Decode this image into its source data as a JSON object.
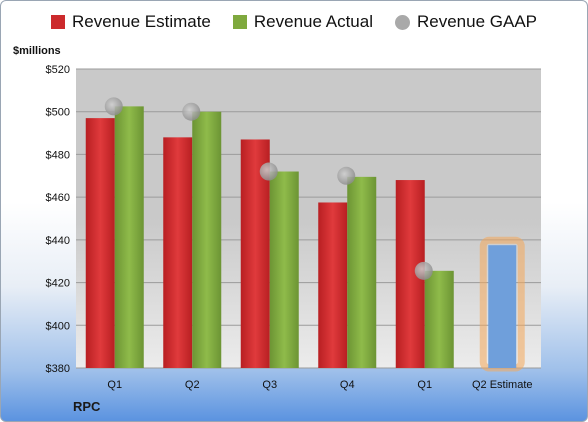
{
  "colors": {
    "estimate": "#cc2a2c",
    "actual": "#7fa93e",
    "gaap": "#a9a9a9",
    "projected": "#6f9fdb",
    "projected_glow": "#f4a85a",
    "plot_top": "#c9c9c9",
    "plot_bottom": "#ececec"
  },
  "legend": [
    {
      "label": "Revenue Estimate",
      "icon": "red-square",
      "color_key": "estimate"
    },
    {
      "label": "Revenue Actual",
      "icon": "green-square",
      "color_key": "actual"
    },
    {
      "label": "Revenue GAAP",
      "icon": "gray-circle",
      "color_key": "gaap"
    }
  ],
  "unit_label": "$millions",
  "company": "RPC",
  "chart_data": {
    "type": "bar",
    "title": "",
    "xlabel": "",
    "ylabel": "$millions",
    "ylim": [
      380,
      520
    ],
    "yticks": [
      380,
      400,
      420,
      440,
      460,
      480,
      500,
      520
    ],
    "ytick_labels": [
      "$380",
      "$400",
      "$420",
      "$440",
      "$460",
      "$480",
      "$500",
      "$520"
    ],
    "grid": true,
    "legend_position": "top",
    "categories": [
      "Q1",
      "Q2",
      "Q3",
      "Q4",
      "Q1",
      "Q2 Estimate"
    ],
    "series": [
      {
        "name": "Revenue Estimate",
        "kind": "bar",
        "values": [
          497,
          488,
          487,
          457.5,
          468,
          null
        ]
      },
      {
        "name": "Revenue Actual",
        "kind": "bar",
        "values": [
          502.5,
          500,
          472,
          469.5,
          425.5,
          null
        ]
      },
      {
        "name": "Revenue GAAP",
        "kind": "scatter",
        "values": [
          502.5,
          500,
          472,
          470,
          425.5,
          null
        ]
      },
      {
        "name": "Q2 Estimate",
        "kind": "bar",
        "values": [
          null,
          null,
          null,
          null,
          null,
          437.5
        ]
      }
    ]
  }
}
